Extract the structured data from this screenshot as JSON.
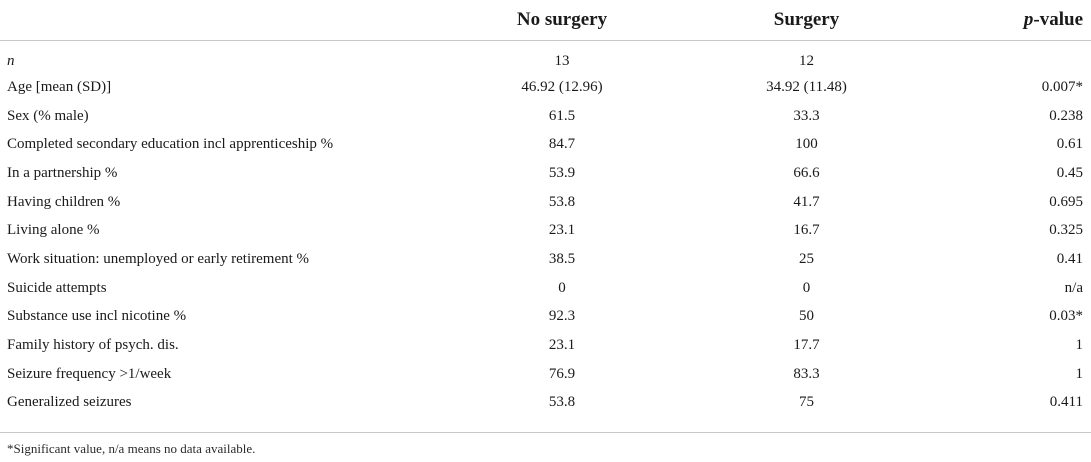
{
  "table": {
    "headers": [
      "",
      "No surgery",
      "Surgery",
      "p-value"
    ],
    "header_pvalue_italic": "p",
    "header_pvalue_rest": "-value",
    "rows": [
      {
        "label": "n",
        "no_surgery": "13",
        "surgery": "12",
        "p_value": ""
      },
      {
        "label": "Age [mean (SD)]",
        "no_surgery": "46.92 (12.96)",
        "surgery": "34.92 (11.48)",
        "p_value": "0.007*"
      },
      {
        "label": "Sex (% male)",
        "no_surgery": "61.5",
        "surgery": "33.3",
        "p_value": "0.238"
      },
      {
        "label": "Completed secondary education incl apprenticeship %",
        "no_surgery": "84.7",
        "surgery": "100",
        "p_value": "0.61"
      },
      {
        "label": "In a partnership %",
        "no_surgery": "53.9",
        "surgery": "66.6",
        "p_value": "0.45"
      },
      {
        "label": "Having children %",
        "no_surgery": "53.8",
        "surgery": "41.7",
        "p_value": "0.695"
      },
      {
        "label": "Living alone %",
        "no_surgery": "23.1",
        "surgery": "16.7",
        "p_value": "0.325"
      },
      {
        "label": "Work situation: unemployed or early retirement %",
        "no_surgery": "38.5",
        "surgery": "25",
        "p_value": "0.41"
      },
      {
        "label": "Suicide attempts",
        "no_surgery": "0",
        "surgery": "0",
        "p_value": "n/a"
      },
      {
        "label": "Substance use incl nicotine %",
        "no_surgery": "92.3",
        "surgery": "50",
        "p_value": "0.03*"
      },
      {
        "label": "Family history of psych. dis.",
        "no_surgery": "23.1",
        "surgery": "17.7",
        "p_value": "1"
      },
      {
        "label": "Seizure frequency >1/week",
        "no_surgery": "76.9",
        "surgery": "83.3",
        "p_value": "1"
      },
      {
        "label": "Generalized seizures",
        "no_surgery": "53.8",
        "surgery": "75",
        "p_value": "0.411"
      }
    ]
  },
  "footnote": "*Significant value, n/a means no data available."
}
